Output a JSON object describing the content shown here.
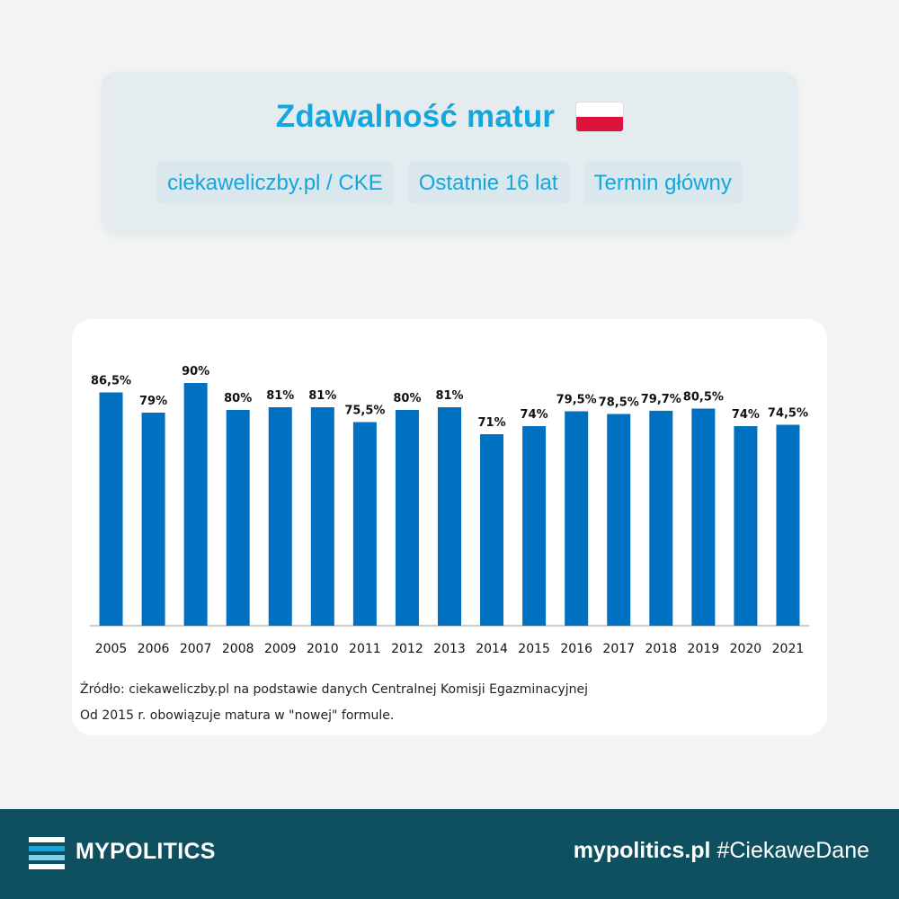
{
  "header": {
    "title": "Zdawalność matur",
    "flag": {
      "name": "poland-flag-icon",
      "colors": [
        "#ffffff",
        "#dc143c"
      ]
    },
    "tags": [
      "ciekaweliczby.pl / CKE",
      "Ostatnie 16 lat",
      "Termin główny"
    ]
  },
  "chart_data": {
    "type": "bar",
    "title": "",
    "xlabel": "",
    "ylabel": "",
    "ylim": [
      0,
      100
    ],
    "grid": false,
    "bar_color": "#0070c0",
    "categories": [
      "2005",
      "2006",
      "2007",
      "2008",
      "2009",
      "2010",
      "2011",
      "2012",
      "2013",
      "2014",
      "2015",
      "2016",
      "2017",
      "2018",
      "2019",
      "2020",
      "2021"
    ],
    "values": [
      86.5,
      79,
      90,
      80,
      81,
      81,
      75.5,
      80,
      81,
      71,
      74,
      79.5,
      78.5,
      79.7,
      80.5,
      74,
      74.5
    ],
    "data_labels": [
      "86,5%",
      "79%",
      "90%",
      "80%",
      "81%",
      "81%",
      "75,5%",
      "80%",
      "81%",
      "71%",
      "74%",
      "79,5%",
      "78,5%",
      "79,7%",
      "80,5%",
      "74%",
      "74,5%"
    ]
  },
  "notes": {
    "source": "Źródło: ciekaweliczby.pl na podstawie danych Centralnej Komisji Egazminacyjnej",
    "formula": "Od 2015 r. obowiązuje matura w \"nowej\" formule."
  },
  "footer": {
    "brand": "MYPOLITICS",
    "site": "mypolitics.pl",
    "hashtag": "#CiekaweDane",
    "background": "#0e5060"
  }
}
